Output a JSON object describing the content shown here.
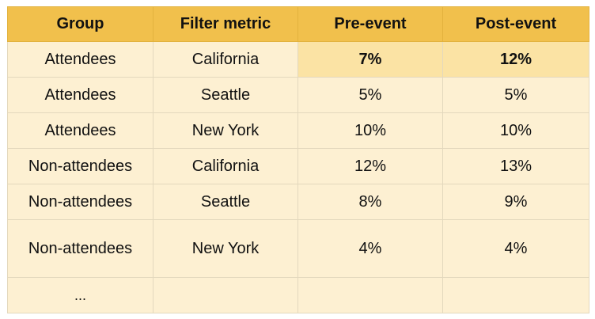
{
  "table": {
    "headers": [
      "Group",
      "Filter metric",
      "Pre-event",
      "Post-event"
    ],
    "rows": [
      {
        "group": "Attendees",
        "metric": "California",
        "pre": "7%",
        "post": "12%",
        "highlighted": true
      },
      {
        "group": "Attendees",
        "metric": "Seattle",
        "pre": "5%",
        "post": "5%"
      },
      {
        "group": "Attendees",
        "metric": "New York",
        "pre": "10%",
        "post": "10%"
      },
      {
        "group": "Non-attendees",
        "metric": "California",
        "pre": "12%",
        "post": "13%"
      },
      {
        "group": "Non-attendees",
        "metric": "Seattle",
        "pre": "8%",
        "post": "9%"
      },
      {
        "group": "Non-attendees",
        "metric": "New York",
        "pre": "4%",
        "post": "4%"
      },
      {
        "group": "...",
        "metric": "",
        "pre": "",
        "post": ""
      }
    ]
  },
  "colors": {
    "header_bg": "#f1c04c",
    "row_bg": "#fdf0d2",
    "highlight_bg": "#fbe3a4"
  }
}
